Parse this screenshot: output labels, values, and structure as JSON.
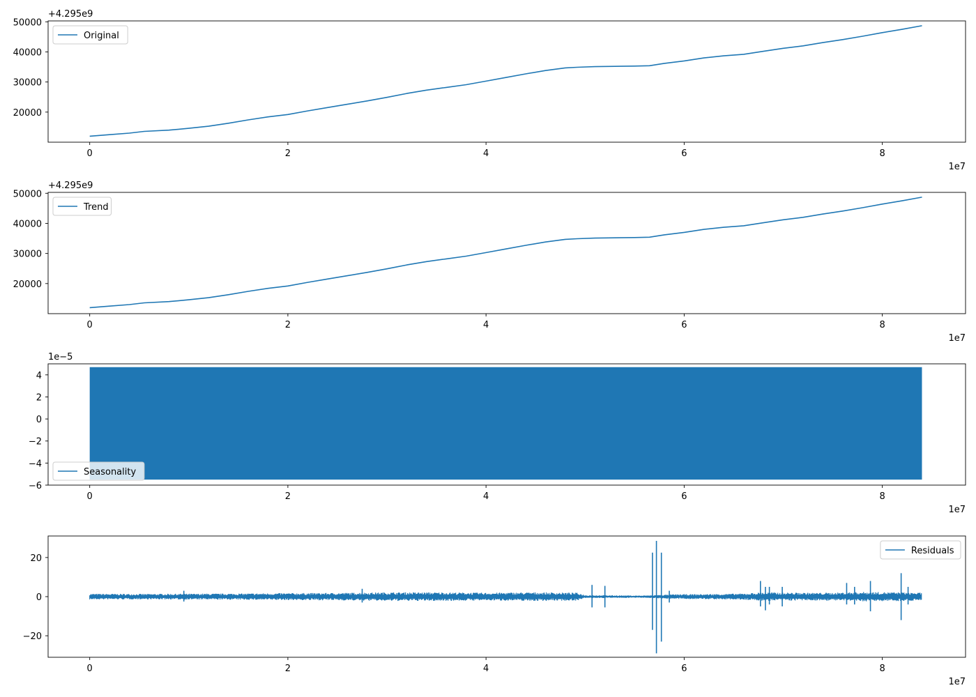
{
  "colors": {
    "series": "#1f77b4",
    "axis": "#000000",
    "legend_border": "#cccccc"
  },
  "chart_data": [
    {
      "type": "line",
      "x_axis": {
        "ticks": [
          0,
          2,
          4,
          6,
          8
        ],
        "tick_labels": [
          "0",
          "2",
          "4",
          "6",
          "8"
        ],
        "multiplier_label": "1e7",
        "xlim": [
          -0.42,
          8.84
        ]
      },
      "y_axis": {
        "ticks": [
          20000,
          30000,
          40000,
          50000
        ],
        "tick_labels": [
          "20000",
          "30000",
          "40000",
          "50000"
        ],
        "offset_label": "+4.295e9",
        "ylim": [
          10000,
          50300
        ]
      },
      "legend": {
        "location": "upper left",
        "entries": [
          "Original"
        ]
      },
      "series": [
        {
          "name": "Original",
          "x": [
            0,
            0.2,
            0.4,
            0.55,
            0.8,
            1.0,
            1.2,
            1.4,
            1.6,
            1.8,
            2.0,
            2.2,
            2.4,
            2.6,
            2.8,
            3.0,
            3.2,
            3.4,
            3.6,
            3.8,
            4.0,
            4.2,
            4.4,
            4.6,
            4.8,
            4.92,
            5.1,
            5.3,
            5.5,
            5.65,
            5.8,
            6.0,
            6.2,
            6.4,
            6.6,
            6.8,
            7.0,
            7.2,
            7.4,
            7.6,
            7.8,
            8.0,
            8.2,
            8.4
          ],
          "y": [
            12000,
            12500,
            13000,
            13600,
            14000,
            14600,
            15300,
            16300,
            17400,
            18400,
            19200,
            20400,
            21500,
            22600,
            23700,
            24900,
            26200,
            27300,
            28200,
            29100,
            30300,
            31500,
            32700,
            33800,
            34700,
            34900,
            35100,
            35200,
            35300,
            35400,
            36200,
            37000,
            38000,
            38700,
            39200,
            40200,
            41200,
            42000,
            43100,
            44100,
            45200,
            46400,
            47500,
            48700
          ]
        }
      ]
    },
    {
      "type": "line",
      "x_axis": {
        "ticks": [
          0,
          2,
          4,
          6,
          8
        ],
        "tick_labels": [
          "0",
          "2",
          "4",
          "6",
          "8"
        ],
        "multiplier_label": "1e7",
        "xlim": [
          -0.42,
          8.84
        ]
      },
      "y_axis": {
        "ticks": [
          20000,
          30000,
          40000,
          50000
        ],
        "tick_labels": [
          "20000",
          "30000",
          "40000",
          "50000"
        ],
        "offset_label": "+4.295e9",
        "ylim": [
          10000,
          50300
        ]
      },
      "legend": {
        "location": "upper left",
        "entries": [
          "Trend"
        ]
      },
      "series": [
        {
          "name": "Trend",
          "x": [
            0,
            0.2,
            0.4,
            0.55,
            0.8,
            1.0,
            1.2,
            1.4,
            1.6,
            1.8,
            2.0,
            2.2,
            2.4,
            2.6,
            2.8,
            3.0,
            3.2,
            3.4,
            3.6,
            3.8,
            4.0,
            4.2,
            4.4,
            4.6,
            4.8,
            4.92,
            5.1,
            5.3,
            5.5,
            5.65,
            5.8,
            6.0,
            6.2,
            6.4,
            6.6,
            6.8,
            7.0,
            7.2,
            7.4,
            7.6,
            7.8,
            8.0,
            8.2,
            8.4
          ],
          "y": [
            12000,
            12500,
            13000,
            13600,
            14000,
            14600,
            15300,
            16300,
            17400,
            18400,
            19200,
            20400,
            21500,
            22600,
            23700,
            24900,
            26200,
            27300,
            28200,
            29100,
            30300,
            31500,
            32700,
            33800,
            34700,
            34900,
            35100,
            35200,
            35300,
            35400,
            36200,
            37000,
            38000,
            38700,
            39200,
            40200,
            41200,
            42000,
            43100,
            44100,
            45200,
            46400,
            47500,
            48700
          ]
        }
      ]
    },
    {
      "type": "line",
      "x_axis": {
        "ticks": [
          0,
          2,
          4,
          6,
          8
        ],
        "tick_labels": [
          "0",
          "2",
          "4",
          "6",
          "8"
        ],
        "multiplier_label": "1e7",
        "xlim": [
          -0.42,
          8.84
        ]
      },
      "y_axis": {
        "ticks": [
          -6,
          -4,
          -2,
          0,
          2,
          4
        ],
        "tick_labels": [
          "−6",
          "−4",
          "−2",
          "0",
          "2",
          "4"
        ],
        "offset_label": "1e−5",
        "ylim": [
          -6,
          5
        ]
      },
      "legend": {
        "location": "lower left",
        "entries": [
          "Seasonality"
        ]
      },
      "series": [
        {
          "name": "Seasonality",
          "fill_band": {
            "x_range": [
              0,
              8.4
            ],
            "min": -5.5,
            "max": 4.7
          }
        }
      ]
    },
    {
      "type": "line",
      "x_axis": {
        "ticks": [
          0,
          2,
          4,
          6,
          8
        ],
        "tick_labels": [
          "0",
          "2",
          "4",
          "6",
          "8"
        ],
        "multiplier_label": "1e7",
        "xlim": [
          -0.42,
          8.84
        ]
      },
      "y_axis": {
        "ticks": [
          -20,
          0,
          20
        ],
        "tick_labels": [
          "−20",
          "0",
          "20"
        ],
        "offset_label": "",
        "ylim": [
          -31,
          31
        ]
      },
      "legend": {
        "location": "upper right",
        "entries": [
          "Residuals"
        ]
      },
      "series": [
        {
          "name": "Residuals",
          "envelope": {
            "x": [
              0,
              0.5,
              1.0,
              1.5,
              2.0,
              2.5,
              3.0,
              3.5,
              4.0,
              4.5,
              4.92,
              5.0,
              5.5,
              5.6,
              5.9,
              6.2,
              6.6,
              6.8,
              7.2,
              7.5,
              7.8,
              8.0,
              8.2,
              8.4
            ],
            "amplitude": [
              1.5,
              1.4,
              1.5,
              1.6,
              1.8,
              1.9,
              2.2,
              2.2,
              2.0,
              2.2,
              2.0,
              0.8,
              0.6,
              0.6,
              1.2,
              1.3,
              1.6,
              2.2,
              2.0,
              2.0,
              2.4,
              2.3,
              2.2,
              2.0
            ]
          },
          "spikes": [
            {
              "x": 0.95,
              "min": -2.5,
              "max": 3
            },
            {
              "x": 2.75,
              "min": -3,
              "max": 4
            },
            {
              "x": 5.07,
              "min": -5.5,
              "max": 6
            },
            {
              "x": 5.2,
              "min": -5.5,
              "max": 5.5
            },
            {
              "x": 5.68,
              "min": -17,
              "max": 22.5
            },
            {
              "x": 5.72,
              "min": -29,
              "max": 28.5
            },
            {
              "x": 5.77,
              "min": -23,
              "max": 22.5
            },
            {
              "x": 5.85,
              "min": -3,
              "max": 3
            },
            {
              "x": 6.77,
              "min": -5,
              "max": 8
            },
            {
              "x": 6.82,
              "min": -7,
              "max": 5
            },
            {
              "x": 6.86,
              "min": -4,
              "max": 5
            },
            {
              "x": 6.99,
              "min": -5,
              "max": 5
            },
            {
              "x": 7.64,
              "min": -4,
              "max": 7
            },
            {
              "x": 7.72,
              "min": -4,
              "max": 5
            },
            {
              "x": 7.88,
              "min": -7.5,
              "max": 8
            },
            {
              "x": 8.19,
              "min": -12,
              "max": 12
            },
            {
              "x": 8.26,
              "min": -4,
              "max": 5
            }
          ]
        }
      ]
    }
  ]
}
